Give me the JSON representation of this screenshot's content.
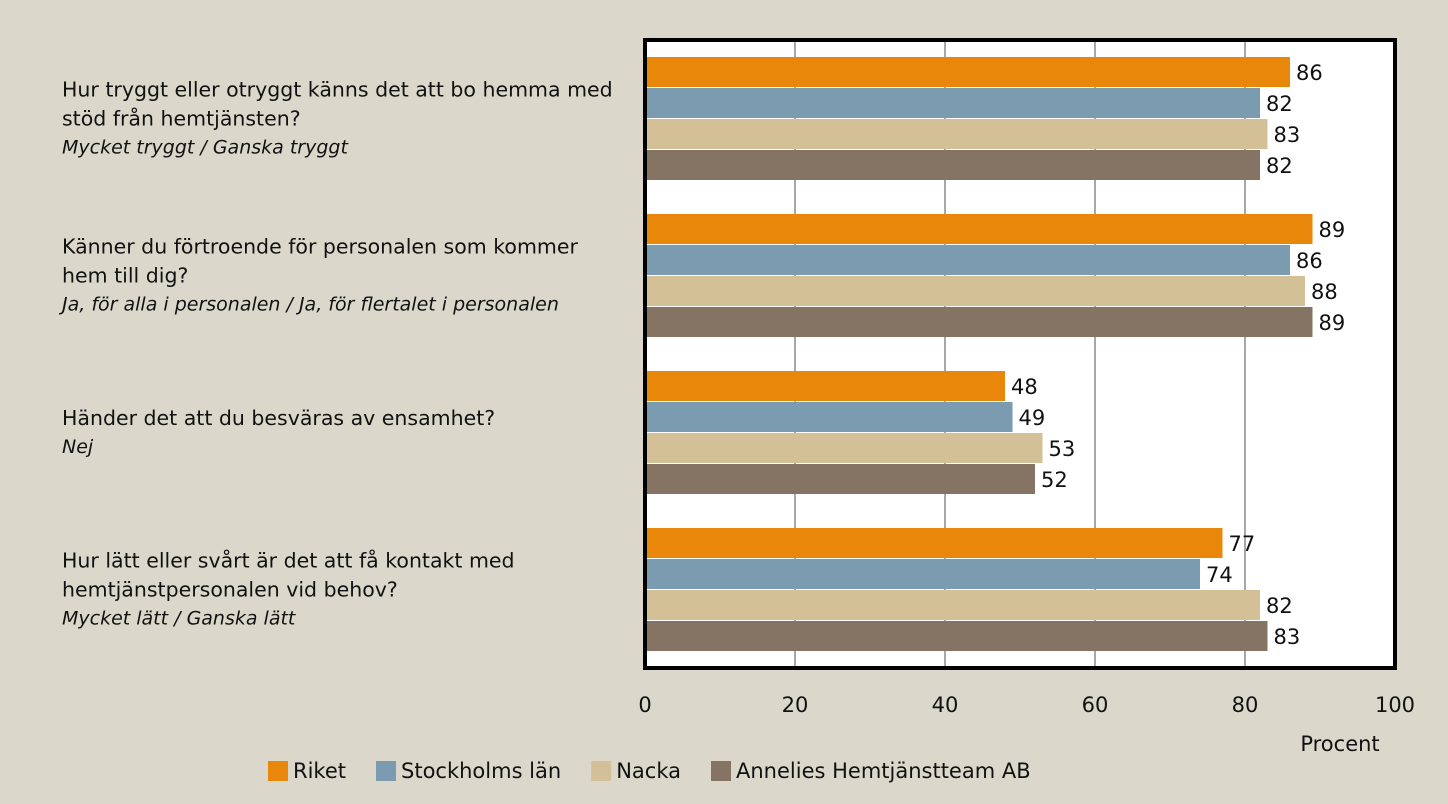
{
  "chart_data": {
    "type": "bar",
    "orientation": "horizontal",
    "categories": [
      "Hur tryggt eller otryggt känns det att bo hemma med stöd från hemtjänsten?",
      "Känner du förtroende för personalen som kommer hem till dig?",
      "Händer det att du besväras av ensamhet?",
      "Hur lätt eller svårt är det att få kontakt med hemtjänstpersonalen vid behov?"
    ],
    "category_notes": [
      "Mycket tryggt / Ganska tryggt",
      "Ja, för alla i personalen / Ja, för flertalet i personalen",
      "Nej",
      "Mycket lätt / Ganska lätt"
    ],
    "series": [
      {
        "name": "Riket",
        "color": "#e8870a",
        "values": [
          86,
          89,
          48,
          77
        ]
      },
      {
        "name": "Stockholms län",
        "color": "#7b9bb0",
        "values": [
          82,
          86,
          49,
          74
        ]
      },
      {
        "name": "Nacka",
        "color": "#d4c097",
        "values": [
          83,
          88,
          53,
          82
        ]
      },
      {
        "name": "Annelies Hemtjänstteam AB",
        "color": "#857463",
        "values": [
          82,
          89,
          52,
          83
        ]
      }
    ],
    "x_label": "Procent",
    "xlim": [
      0,
      100
    ],
    "xticks": [
      0,
      20,
      40,
      60,
      80,
      100
    ],
    "grid": true,
    "legend": "bottom"
  }
}
